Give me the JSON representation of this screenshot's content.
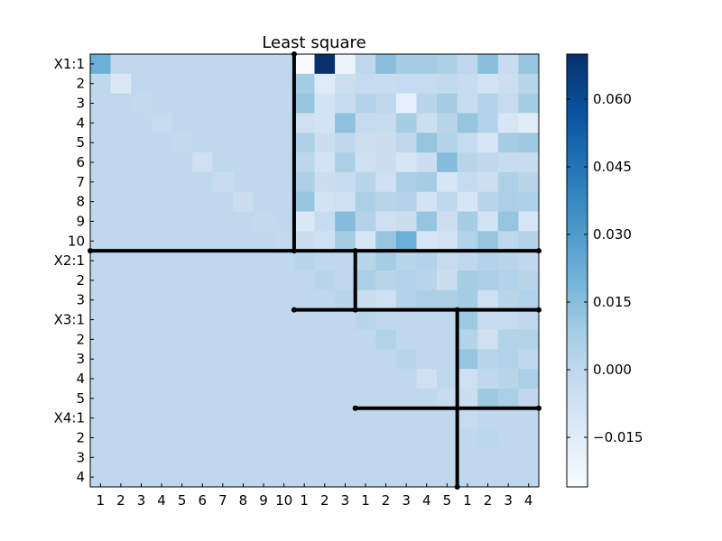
{
  "chart_data": {
    "type": "heatmap",
    "title": "Least square",
    "colormap": "Blues",
    "color_scale": {
      "min": -0.026,
      "max": 0.07
    },
    "colorbar_ticks": [
      "0.060",
      "0.045",
      "0.030",
      "0.015",
      "0.000",
      "−0.015"
    ],
    "colorbar_tick_values": [
      0.06,
      0.045,
      0.03,
      0.015,
      0.0,
      -0.015
    ],
    "row_labels": [
      "X1:1",
      "2",
      "3",
      "4",
      "5",
      "6",
      "7",
      "8",
      "9",
      "10",
      "X2:1",
      "2",
      "3",
      "X3:1",
      "2",
      "3",
      "4",
      "5",
      "X4:1",
      "2",
      "3",
      "4"
    ],
    "col_labels": [
      "1",
      "2",
      "3",
      "4",
      "5",
      "6",
      "7",
      "8",
      "9",
      "10",
      "1",
      "2",
      "3",
      "1",
      "2",
      "3",
      "4",
      "5",
      "1",
      "2",
      "3",
      "4"
    ],
    "block_boundaries": [
      10,
      13,
      18
    ],
    "matrix": [
      [
        0.022,
        0.0,
        0.0,
        0.0,
        0.0,
        0.0,
        0.0,
        0.0,
        0.0,
        0.0,
        -0.026,
        0.07,
        -0.02,
        0.0,
        0.015,
        0.008,
        0.008,
        0.006,
        0.0,
        0.015,
        -0.003,
        0.012
      ],
      [
        0.0,
        -0.012,
        0.0,
        0.0,
        0.0,
        0.0,
        0.0,
        0.0,
        0.0,
        0.0,
        0.008,
        -0.014,
        -0.005,
        -0.002,
        -0.003,
        -0.002,
        -0.002,
        -0.001,
        -0.003,
        -0.008,
        -0.005,
        0.002
      ],
      [
        0.0,
        0.0,
        -0.001,
        0.0,
        0.0,
        0.0,
        0.0,
        0.0,
        0.0,
        0.0,
        0.012,
        -0.008,
        -0.003,
        0.004,
        0.0,
        -0.018,
        0.002,
        0.008,
        -0.002,
        0.004,
        -0.002,
        0.008
      ],
      [
        0.0,
        0.0,
        0.0,
        -0.002,
        0.0,
        0.0,
        0.0,
        0.0,
        0.0,
        0.0,
        -0.006,
        -0.008,
        0.014,
        -0.002,
        -0.003,
        0.008,
        -0.005,
        0.002,
        0.012,
        0.004,
        -0.01,
        -0.015
      ],
      [
        0.0,
        0.0,
        0.0,
        0.0,
        -0.001,
        0.0,
        0.0,
        0.0,
        0.0,
        0.0,
        0.005,
        -0.004,
        0.0,
        -0.005,
        -0.004,
        0.0,
        0.012,
        0.004,
        -0.002,
        -0.01,
        0.008,
        0.01
      ],
      [
        0.0,
        0.0,
        0.0,
        0.0,
        0.0,
        -0.006,
        0.0,
        0.0,
        0.0,
        0.0,
        0.001,
        -0.008,
        0.006,
        -0.006,
        -0.004,
        -0.01,
        -0.004,
        0.016,
        0.002,
        0.0,
        -0.003,
        -0.003
      ],
      [
        0.0,
        0.0,
        0.0,
        0.0,
        0.0,
        0.0,
        -0.003,
        0.0,
        0.0,
        0.0,
        0.006,
        -0.004,
        -0.002,
        0.002,
        -0.006,
        0.006,
        0.008,
        -0.01,
        -0.002,
        -0.005,
        0.005,
        0.002
      ],
      [
        0.0,
        0.0,
        0.0,
        0.0,
        0.0,
        0.0,
        0.0,
        -0.004,
        0.0,
        0.0,
        0.012,
        -0.008,
        -0.006,
        0.006,
        0.002,
        0.003,
        -0.008,
        0.0,
        -0.01,
        0.002,
        0.006,
        0.005
      ],
      [
        0.0,
        0.0,
        0.0,
        0.0,
        0.0,
        0.0,
        0.0,
        0.0,
        -0.001,
        0.0,
        -0.012,
        -0.003,
        0.016,
        0.004,
        -0.006,
        -0.004,
        0.012,
        -0.005,
        0.008,
        -0.008,
        0.012,
        -0.01
      ],
      [
        0.0,
        0.0,
        0.0,
        0.0,
        0.0,
        0.0,
        0.0,
        0.0,
        0.0,
        -0.001,
        -0.004,
        -0.006,
        0.008,
        -0.01,
        0.012,
        0.022,
        -0.01,
        -0.008,
        0.004,
        0.012,
        0.0,
        0.003
      ],
      [
        0.0,
        0.0,
        0.0,
        0.0,
        0.0,
        0.0,
        0.0,
        0.0,
        0.0,
        0.0,
        0.002,
        0.0,
        0.0,
        0.002,
        0.008,
        0.002,
        0.004,
        -0.002,
        0.0,
        0.004,
        0.002,
        0.0
      ],
      [
        0.0,
        0.0,
        0.0,
        0.0,
        0.0,
        0.0,
        0.0,
        0.0,
        0.0,
        0.0,
        0.0,
        0.002,
        0.0,
        0.006,
        0.002,
        0.004,
        0.002,
        -0.004,
        0.008,
        0.006,
        0.004,
        0.002
      ],
      [
        0.0,
        0.0,
        0.0,
        0.0,
        0.0,
        0.0,
        0.0,
        0.0,
        0.0,
        0.0,
        0.0,
        0.0,
        0.002,
        -0.004,
        -0.006,
        0.004,
        0.006,
        0.006,
        0.008,
        -0.006,
        0.002,
        0.004
      ],
      [
        0.0,
        0.0,
        0.0,
        0.0,
        0.0,
        0.0,
        0.0,
        0.0,
        0.0,
        0.0,
        0.0,
        0.0,
        0.0,
        0.002,
        0.0,
        0.0,
        0.0,
        0.0,
        0.01,
        -0.002,
        -0.002,
        0.0
      ],
      [
        0.0,
        0.0,
        0.0,
        0.0,
        0.0,
        0.0,
        0.0,
        0.0,
        0.0,
        0.0,
        0.0,
        0.0,
        0.0,
        0.0,
        0.004,
        0.0,
        0.0,
        0.0,
        0.004,
        -0.006,
        0.004,
        0.004
      ],
      [
        0.0,
        0.0,
        0.0,
        0.0,
        0.0,
        0.0,
        0.0,
        0.0,
        0.0,
        0.0,
        0.0,
        0.0,
        0.0,
        0.0,
        0.0,
        0.002,
        0.0,
        0.0,
        0.012,
        0.002,
        0.004,
        0.0
      ],
      [
        0.0,
        0.0,
        0.0,
        0.0,
        0.0,
        0.0,
        0.0,
        0.0,
        0.0,
        0.0,
        0.0,
        0.0,
        0.0,
        0.0,
        0.0,
        0.0,
        -0.006,
        0.0,
        -0.006,
        0.0,
        0.002,
        0.006
      ],
      [
        0.0,
        0.0,
        0.0,
        0.0,
        0.0,
        0.0,
        0.0,
        0.0,
        0.0,
        0.0,
        0.0,
        0.0,
        0.0,
        0.0,
        0.0,
        0.0,
        0.0,
        -0.002,
        -0.004,
        0.01,
        0.006,
        0.0
      ],
      [
        0.0,
        0.0,
        0.0,
        0.0,
        0.0,
        0.0,
        0.0,
        0.0,
        0.0,
        0.0,
        0.0,
        0.0,
        0.0,
        0.0,
        0.0,
        0.0,
        0.0,
        0.0,
        -0.002,
        0.0,
        0.0,
        0.0
      ],
      [
        0.0,
        0.0,
        0.0,
        0.0,
        0.0,
        0.0,
        0.0,
        0.0,
        0.0,
        0.0,
        0.0,
        0.0,
        0.0,
        0.0,
        0.0,
        0.0,
        0.0,
        0.0,
        0.0,
        0.001,
        0.0,
        0.0
      ],
      [
        0.0,
        0.0,
        0.0,
        0.0,
        0.0,
        0.0,
        0.0,
        0.0,
        0.0,
        0.0,
        0.0,
        0.0,
        0.0,
        0.0,
        0.0,
        0.0,
        0.0,
        0.0,
        0.0,
        0.0,
        0.0,
        0.0
      ],
      [
        0.0,
        0.0,
        0.0,
        0.0,
        0.0,
        0.0,
        0.0,
        0.0,
        0.0,
        0.0,
        0.0,
        0.0,
        0.0,
        0.0,
        0.0,
        0.0,
        0.0,
        0.0,
        0.0,
        0.0,
        0.0,
        0.0
      ]
    ]
  }
}
